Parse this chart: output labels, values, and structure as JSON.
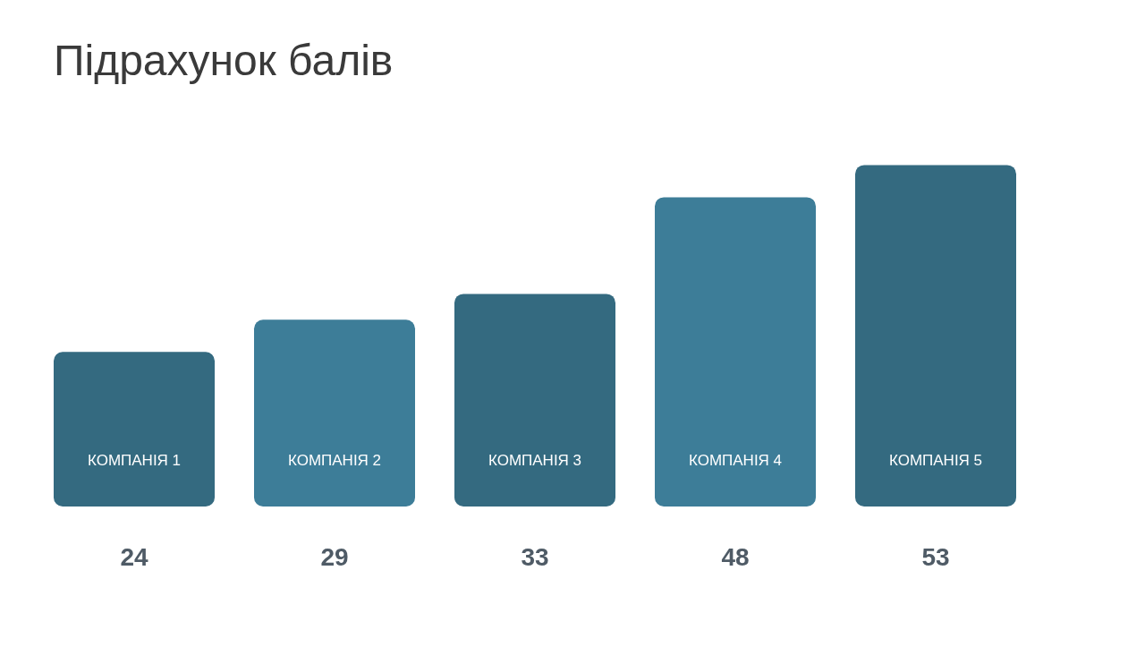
{
  "chart_data": {
    "type": "bar",
    "title": "Підрахунок балів",
    "categories": [
      "КОМПАНІЯ 1",
      "КОМПАНІЯ 2",
      "КОМПАНІЯ 3",
      "КОМПАНІЯ 4",
      "КОМПАНІЯ 5"
    ],
    "values": [
      24,
      29,
      33,
      48,
      53
    ],
    "colors": [
      "#346a80",
      "#3d7d98",
      "#346a80",
      "#3d7d98",
      "#346a80"
    ],
    "data_labels": true,
    "tick_labels": "x"
  }
}
